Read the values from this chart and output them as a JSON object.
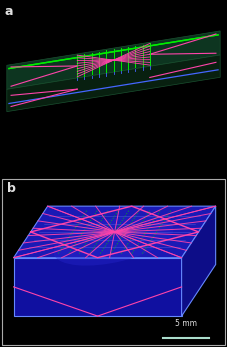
{
  "fig_width": 2.27,
  "fig_height": 3.47,
  "dpi": 100,
  "background_color": "#000000",
  "panel_a_label": "a",
  "panel_b_label": "b",
  "label_color": "#e0e0e0",
  "label_fontsize": 9,
  "scale_bar_text": "5 mm",
  "scale_bar_color": "#aaddcc",
  "scale_bar_text_color": "#dddddd",
  "green_line_color": "#00ee00",
  "blue_line_color": "#4466ff",
  "pink_line_color": "#ff44aa",
  "slab_top_color": "#0d3520",
  "slab_front_color": "#082010",
  "slab_right_color": "#0a2818",
  "photo_front_color": "#1a1a99",
  "photo_top_color": "#2233bb",
  "photo_right_color": "#1515aa",
  "photo_edge_color": "#6688ff",
  "photo_inner_color": "#0e0e70"
}
